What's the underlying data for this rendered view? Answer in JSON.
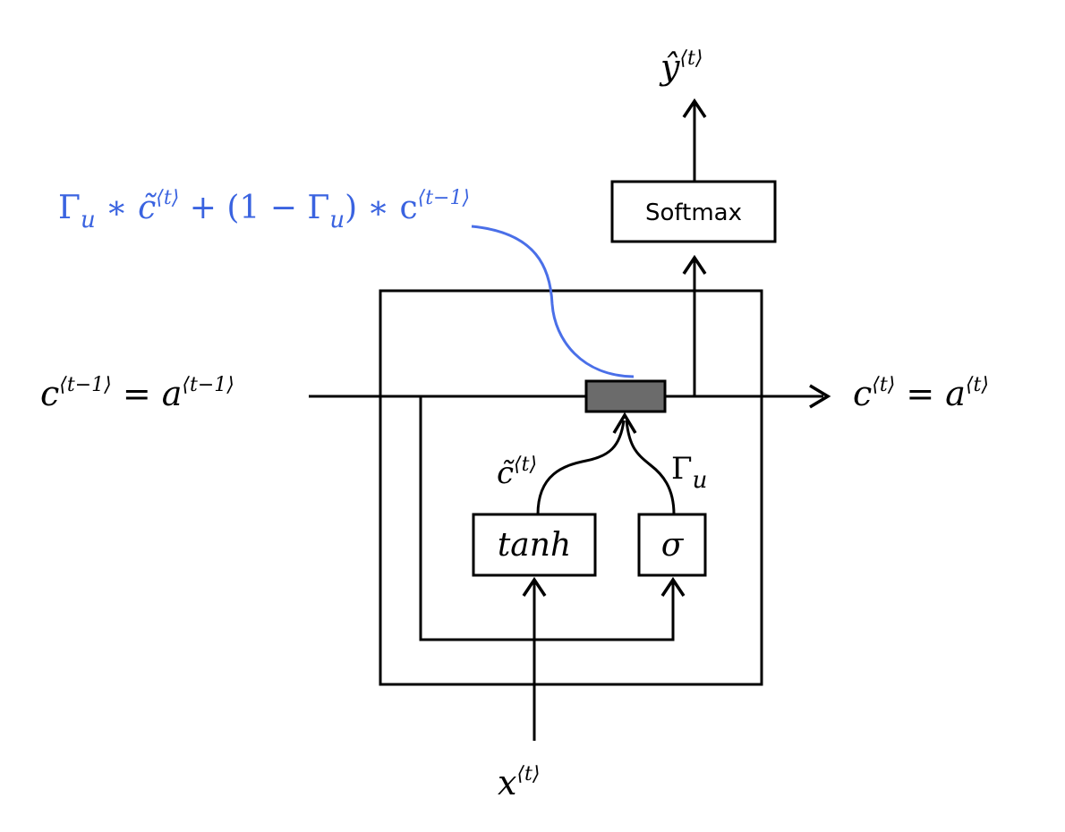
{
  "colors": {
    "line": "#000000",
    "highlight": "#4a6fe8",
    "gate_fill": "#6b6b6b"
  },
  "labels": {
    "input_left_main": "c",
    "input_left_sup": "⟨t−1⟩",
    "input_left_eq": " = a",
    "input_left_sup2": "⟨t−1⟩",
    "output_right_main": "c",
    "output_right_sup": "⟨t⟩",
    "output_right_eq": " = a",
    "output_right_sup2": "⟨t⟩",
    "x_main": "x",
    "x_sup": "⟨t⟩",
    "y_main": "ŷ",
    "y_sup": "⟨t⟩",
    "ctilde_main": "c̃",
    "ctilde_sup": "⟨t⟩",
    "gamma_main": "Γ",
    "gamma_sub": "u"
  },
  "boxes": {
    "softmax": "Softmax",
    "tanh": "tanh",
    "sigma": "σ"
  },
  "formula": {
    "part1": "Γ",
    "part1_sub": "u",
    "part2": " ∗ c̃",
    "part2_sup": "⟨t⟩",
    "part3": " + (1 − Γ",
    "part3_sub": "u",
    "part4": ") ∗ c",
    "part4_sup": "⟨t−1⟩"
  }
}
